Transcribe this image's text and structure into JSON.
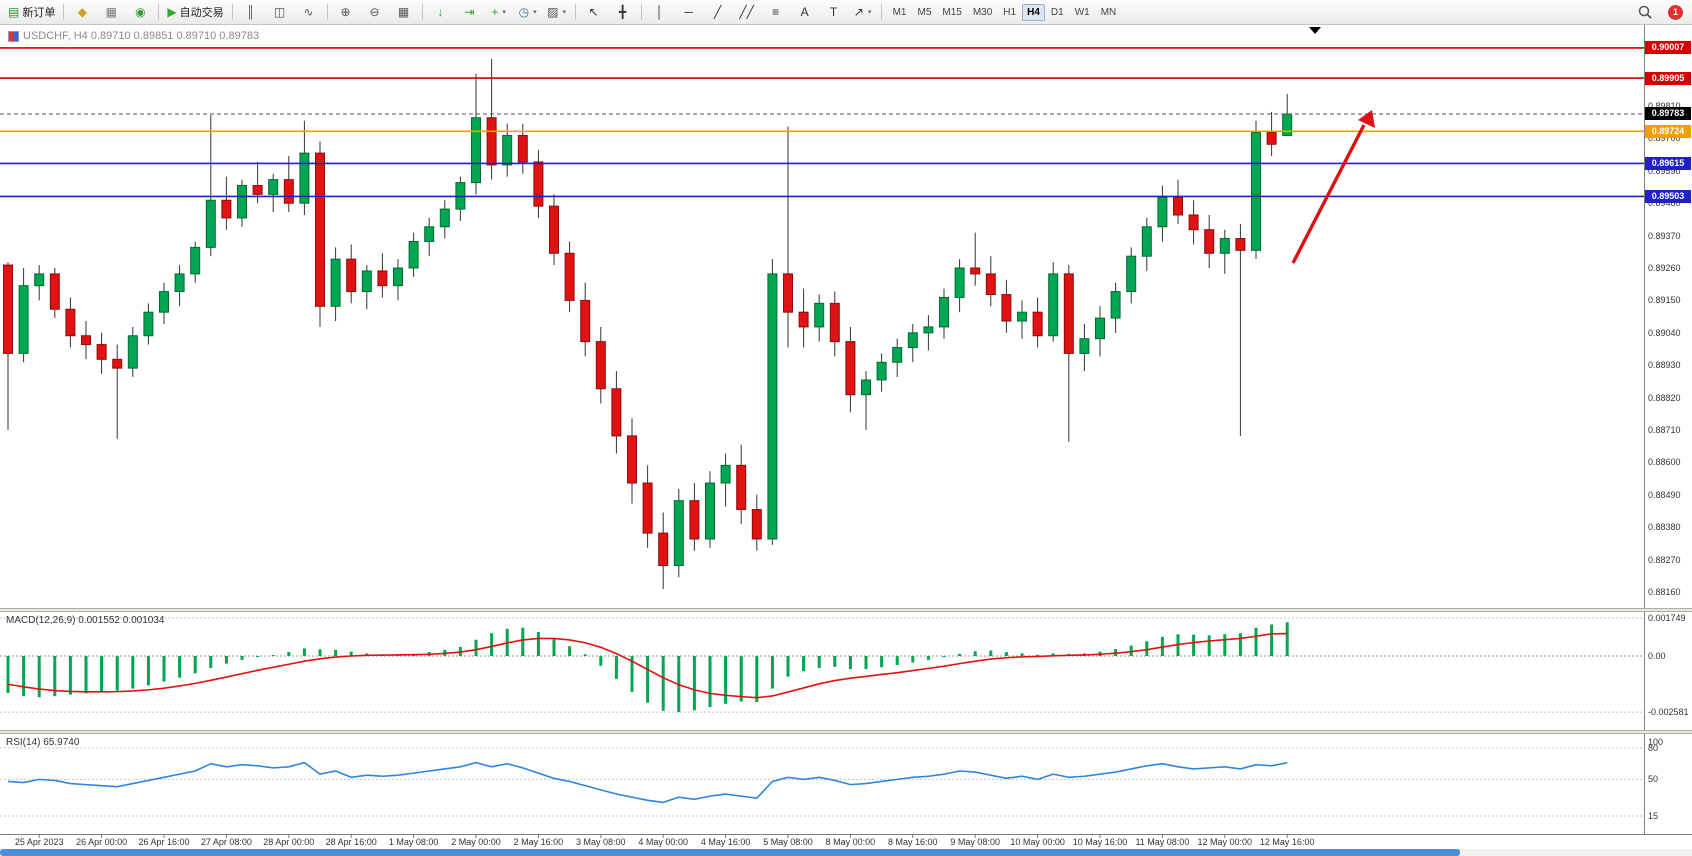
{
  "toolbar": {
    "items": [
      {
        "name": "new-order-button",
        "glyph": "▤",
        "color": "#2f8f2f",
        "label": "新订单"
      },
      {
        "sep": true
      },
      {
        "name": "wizard-icon",
        "glyph": "◆",
        "color": "#c9a227"
      },
      {
        "name": "profile-icon",
        "glyph": "▦",
        "color": "#7a7a7a"
      },
      {
        "name": "community-icon",
        "glyph": "◉",
        "color": "#3a9d3a"
      },
      {
        "sep": true
      },
      {
        "name": "autotrading-button",
        "glyph": "▶",
        "color": "#2faa2f",
        "label": "自动交易"
      },
      {
        "sep": true
      },
      {
        "name": "bar-chart-icon",
        "glyph": "║",
        "color": "#555555"
      },
      {
        "name": "candlestick-chart-icon",
        "glyph": "◫",
        "color": "#555555"
      },
      {
        "name": "line-chart-icon",
        "glyph": "∿",
        "color": "#555555"
      },
      {
        "sep": true
      },
      {
        "name": "zoom-in-icon",
        "glyph": "⊕",
        "color": "#555555"
      },
      {
        "name": "zoom-out-icon",
        "glyph": "⊖",
        "color": "#555555"
      },
      {
        "name": "tile-windows-icon",
        "glyph": "▦",
        "color": "#555555"
      },
      {
        "sep": true
      },
      {
        "name": "auto-scroll-icon",
        "glyph": "↓",
        "color": "#2faa2f"
      },
      {
        "name": "chart-shift-icon",
        "glyph": "⇥",
        "color": "#2faa2f"
      },
      {
        "name": "indicators-icon",
        "glyph": "+",
        "color": "#2faa2f",
        "dropdown": true
      },
      {
        "name": "periods-icon",
        "glyph": "◷",
        "color": "#3a6ea5",
        "dropdown": true
      },
      {
        "name": "templates-icon",
        "glyph": "▨",
        "color": "#555555",
        "dropdown": true
      },
      {
        "sep": true
      },
      {
        "name": "cursor-icon",
        "glyph": "↖",
        "color": "#333333"
      },
      {
        "name": "crosshair-icon",
        "glyph": "╋",
        "color": "#333333"
      },
      {
        "sep": true
      },
      {
        "name": "vertical-line-icon",
        "glyph": "│",
        "color": "#333333"
      },
      {
        "name": "horizontal-line-icon",
        "glyph": "─",
        "color": "#333333"
      },
      {
        "name": "trendline-icon",
        "glyph": "╱",
        "color": "#333333"
      },
      {
        "name": "channel-icon",
        "glyph": "╱╱",
        "color": "#333333"
      },
      {
        "name": "fibonacci-icon",
        "glyph": "≡",
        "color": "#333333"
      },
      {
        "name": "text-icon",
        "glyph": "A",
        "color": "#333333"
      },
      {
        "name": "label-icon",
        "glyph": "T",
        "color": "#333333"
      },
      {
        "name": "arrows-icon",
        "glyph": "↗",
        "color": "#333333",
        "dropdown": true
      },
      {
        "sep": true
      }
    ],
    "timeframes": [
      "M1",
      "M5",
      "M15",
      "M30",
      "H1",
      "H4",
      "D1",
      "W1",
      "MN"
    ],
    "active_timeframe": "H4",
    "notification_count": "1"
  },
  "chart_data": {
    "type": "candlestick",
    "symbol": "USDCHF",
    "timeframe": "H4",
    "title": "USDCHF, H4  0.89710 0.89851 0.89710 0.89783",
    "colors": {
      "up": "#00a651",
      "up_stroke": "#006b33",
      "down": "#e01212",
      "down_stroke": "#8e0b0b",
      "wick": "#333333",
      "macd_hist": "#00a651",
      "macd_signal": "#e01212",
      "rsi_line": "#2e86de",
      "arrow": "#dd1111"
    },
    "price_axis": {
      "labels": [
        "0.89810",
        "0.89700",
        "0.89590",
        "0.89480",
        "0.89370",
        "0.89260",
        "0.89150",
        "0.89040",
        "0.88930",
        "0.88820",
        "0.88710",
        "0.88600",
        "0.88490",
        "0.88380",
        "0.88270",
        "0.88160"
      ]
    },
    "time_labels": [
      "25 Apr 2023",
      "26 Apr 00:00",
      "26 Apr 16:00",
      "27 Apr 08:00",
      "28 Apr 00:00",
      "28 Apr 16:00",
      "1 May 08:00",
      "2 May 00:00",
      "2 May 16:00",
      "3 May 08:00",
      "4 May 00:00",
      "4 May 16:00",
      "5 May 08:00",
      "8 May 00:00",
      "8 May 16:00",
      "9 May 08:00",
      "10 May 00:00",
      "10 May 16:00",
      "11 May 08:00",
      "12 May 00:00",
      "12 May 16:00"
    ],
    "label_start_index": 2,
    "label_every": 4,
    "hlines": [
      {
        "price": 0.90007,
        "label": "0.90007",
        "color": "#d40000"
      },
      {
        "price": 0.89905,
        "label": "0.89905",
        "color": "#d40000"
      },
      {
        "price": 0.89724,
        "label": "0.89724",
        "color": "#f0a000"
      },
      {
        "price": 0.89615,
        "label": "0.89615",
        "color": "#2020c8"
      },
      {
        "price": 0.89503,
        "label": "0.89503",
        "color": "#2020c8"
      }
    ],
    "current_price": {
      "value": 0.89783,
      "label": "0.89783",
      "color": "#000000"
    },
    "candles": [
      [
        0.8927,
        0.8928,
        0.8871,
        0.8897
      ],
      [
        0.8897,
        0.8926,
        0.8894,
        0.892
      ],
      [
        0.892,
        0.8927,
        0.8915,
        0.8924
      ],
      [
        0.8924,
        0.8926,
        0.8909,
        0.8912
      ],
      [
        0.8912,
        0.8916,
        0.8899,
        0.8903
      ],
      [
        0.8903,
        0.8908,
        0.8895,
        0.89
      ],
      [
        0.89,
        0.8904,
        0.889,
        0.8895
      ],
      [
        0.8895,
        0.89,
        0.8868,
        0.8892
      ],
      [
        0.8892,
        0.8906,
        0.8889,
        0.8903
      ],
      [
        0.8903,
        0.8914,
        0.89,
        0.8911
      ],
      [
        0.8911,
        0.8921,
        0.8907,
        0.8918
      ],
      [
        0.8918,
        0.8927,
        0.8913,
        0.8924
      ],
      [
        0.8924,
        0.8935,
        0.8921,
        0.8933
      ],
      [
        0.8933,
        0.8978,
        0.893,
        0.8949
      ],
      [
        0.8949,
        0.8957,
        0.8939,
        0.8943
      ],
      [
        0.8943,
        0.8956,
        0.894,
        0.8954
      ],
      [
        0.8954,
        0.8962,
        0.8948,
        0.8951
      ],
      [
        0.8951,
        0.8958,
        0.8945,
        0.8956
      ],
      [
        0.8956,
        0.8964,
        0.8945,
        0.8948
      ],
      [
        0.8948,
        0.8976,
        0.8944,
        0.8965
      ],
      [
        0.8965,
        0.8969,
        0.8906,
        0.8913
      ],
      [
        0.8913,
        0.8933,
        0.8908,
        0.8929
      ],
      [
        0.8929,
        0.8934,
        0.8914,
        0.8918
      ],
      [
        0.8918,
        0.8927,
        0.8912,
        0.8925
      ],
      [
        0.8925,
        0.8931,
        0.8916,
        0.892
      ],
      [
        0.892,
        0.8929,
        0.8915,
        0.8926
      ],
      [
        0.8926,
        0.8938,
        0.8923,
        0.8935
      ],
      [
        0.8935,
        0.8943,
        0.893,
        0.894
      ],
      [
        0.894,
        0.8949,
        0.8936,
        0.8946
      ],
      [
        0.8946,
        0.8957,
        0.8942,
        0.8955
      ],
      [
        0.8955,
        0.8992,
        0.8951,
        0.8977
      ],
      [
        0.8977,
        0.8997,
        0.8956,
        0.8961
      ],
      [
        0.8961,
        0.8975,
        0.8957,
        0.8971
      ],
      [
        0.8971,
        0.8975,
        0.8958,
        0.8962
      ],
      [
        0.8962,
        0.8966,
        0.8943,
        0.8947
      ],
      [
        0.8947,
        0.8951,
        0.8927,
        0.8931
      ],
      [
        0.8931,
        0.8935,
        0.8911,
        0.8915
      ],
      [
        0.8915,
        0.8921,
        0.8896,
        0.8901
      ],
      [
        0.8901,
        0.8906,
        0.888,
        0.8885
      ],
      [
        0.8885,
        0.8891,
        0.8863,
        0.8869
      ],
      [
        0.8869,
        0.8875,
        0.8846,
        0.8853
      ],
      [
        0.8853,
        0.8859,
        0.8831,
        0.8836
      ],
      [
        0.8836,
        0.8843,
        0.8817,
        0.8825
      ],
      [
        0.8825,
        0.8851,
        0.8821,
        0.8847
      ],
      [
        0.8847,
        0.8853,
        0.883,
        0.8834
      ],
      [
        0.8834,
        0.8857,
        0.8831,
        0.8853
      ],
      [
        0.8853,
        0.8863,
        0.8845,
        0.8859
      ],
      [
        0.8859,
        0.8866,
        0.8839,
        0.8844
      ],
      [
        0.8844,
        0.8849,
        0.883,
        0.8834
      ],
      [
        0.8834,
        0.8929,
        0.8832,
        0.8924
      ],
      [
        0.8924,
        0.8974,
        0.8899,
        0.8911
      ],
      [
        0.8911,
        0.8919,
        0.8899,
        0.8906
      ],
      [
        0.8906,
        0.8917,
        0.8901,
        0.8914
      ],
      [
        0.8914,
        0.8918,
        0.8896,
        0.8901
      ],
      [
        0.8901,
        0.8906,
        0.8877,
        0.8883
      ],
      [
        0.8883,
        0.8891,
        0.8871,
        0.8888
      ],
      [
        0.8888,
        0.8897,
        0.8884,
        0.8894
      ],
      [
        0.8894,
        0.8902,
        0.8889,
        0.8899
      ],
      [
        0.8899,
        0.8907,
        0.8894,
        0.8904
      ],
      [
        0.8904,
        0.891,
        0.8898,
        0.8906
      ],
      [
        0.8906,
        0.8919,
        0.8902,
        0.8916
      ],
      [
        0.8916,
        0.8929,
        0.8911,
        0.8926
      ],
      [
        0.8926,
        0.8938,
        0.892,
        0.8924
      ],
      [
        0.8924,
        0.893,
        0.8913,
        0.8917
      ],
      [
        0.8917,
        0.8922,
        0.8904,
        0.8908
      ],
      [
        0.8908,
        0.8915,
        0.8902,
        0.8911
      ],
      [
        0.8911,
        0.8916,
        0.8899,
        0.8903
      ],
      [
        0.8903,
        0.8928,
        0.8901,
        0.8924
      ],
      [
        0.8924,
        0.8927,
        0.8867,
        0.8897
      ],
      [
        0.8897,
        0.8907,
        0.8891,
        0.8902
      ],
      [
        0.8902,
        0.8913,
        0.8896,
        0.8909
      ],
      [
        0.8909,
        0.8921,
        0.8904,
        0.8918
      ],
      [
        0.8918,
        0.8933,
        0.8914,
        0.893
      ],
      [
        0.893,
        0.8943,
        0.8925,
        0.894
      ],
      [
        0.894,
        0.8954,
        0.8935,
        0.895
      ],
      [
        0.895,
        0.8956,
        0.8941,
        0.8944
      ],
      [
        0.8944,
        0.8949,
        0.8934,
        0.8939
      ],
      [
        0.8939,
        0.8944,
        0.8926,
        0.8931
      ],
      [
        0.8931,
        0.8939,
        0.8924,
        0.8936
      ],
      [
        0.8936,
        0.8941,
        0.8869,
        0.8932
      ],
      [
        0.8932,
        0.8976,
        0.8929,
        0.8972
      ],
      [
        0.8972,
        0.8979,
        0.8964,
        0.8968
      ],
      [
        0.8971,
        0.89851,
        0.8971,
        0.89783
      ]
    ],
    "macd": {
      "label": "MACD(12,26,9) 0.001552 0.001034",
      "scale_labels": [
        "0.001749",
        "0.00",
        "-0.002581"
      ],
      "scale_values": [
        0.001749,
        0,
        -0.002581
      ],
      "histogram": [
        -0.0017,
        -0.00185,
        -0.0019,
        -0.00185,
        -0.00178,
        -0.00172,
        -0.00165,
        -0.0016,
        -0.0015,
        -0.00135,
        -0.00118,
        -0.001,
        -0.0008,
        -0.00055,
        -0.00035,
        -0.00018,
        -5e-05,
        5e-05,
        0.00018,
        0.00035,
        0.0003,
        0.00028,
        0.0002,
        0.00012,
        8e-05,
        6e-05,
        0.0001,
        0.00018,
        0.00028,
        0.00042,
        0.00075,
        0.00105,
        0.00125,
        0.0013,
        0.0011,
        0.0008,
        0.00045,
        8e-05,
        -0.00045,
        -0.00105,
        -0.00165,
        -0.00215,
        -0.00252,
        -0.00258,
        -0.0025,
        -0.00235,
        -0.0022,
        -0.0021,
        -0.00212,
        -0.0015,
        -0.00095,
        -0.0007,
        -0.00055,
        -0.0005,
        -0.0006,
        -0.0006,
        -0.00052,
        -0.00042,
        -0.0003,
        -0.00018,
        -5e-05,
        0.0001,
        0.00022,
        0.00025,
        0.00018,
        0.00012,
        5e-05,
        0.00012,
        0.0001,
        0.00012,
        0.0002,
        0.00032,
        0.00048,
        0.00068,
        0.00088,
        0.001,
        0.00098,
        0.00095,
        0.001,
        0.00105,
        0.0013,
        0.00145,
        0.001552
      ],
      "signal": [
        -0.0013,
        -0.00142,
        -0.00152,
        -0.00159,
        -0.00163,
        -0.00165,
        -0.00165,
        -0.00164,
        -0.00161,
        -0.00156,
        -0.00148,
        -0.00138,
        -0.00126,
        -0.00112,
        -0.00097,
        -0.00081,
        -0.00066,
        -0.00052,
        -0.00038,
        -0.00024,
        -0.00013,
        -5e-05,
        0.0,
        3e-05,
        4e-05,
        5e-05,
        6e-05,
        8e-05,
        0.00012,
        0.00018,
        0.00029,
        0.00044,
        0.0006,
        0.00074,
        0.00081,
        0.00081,
        0.00074,
        0.00061,
        0.0004,
        0.00011,
        -0.00024,
        -0.00062,
        -0.001,
        -0.00132,
        -0.00156,
        -0.00172,
        -0.00181,
        -0.00187,
        -0.00192,
        -0.00184,
        -0.00166,
        -0.00147,
        -0.00128,
        -0.00113,
        -0.00102,
        -0.00094,
        -0.00085,
        -0.00077,
        -0.00067,
        -0.00057,
        -0.00047,
        -0.00035,
        -0.00024,
        -0.00014,
        -8e-05,
        -4e-05,
        -2e-05,
        1e-05,
        3e-05,
        5e-05,
        8e-05,
        0.00013,
        0.0002,
        0.00029,
        0.00041,
        0.00053,
        0.00062,
        0.00069,
        0.00075,
        0.00081,
        0.00091,
        0.00102,
        0.001034
      ]
    },
    "rsi": {
      "label": "RSI(14) 65.9740",
      "scale_labels": [
        "100",
        "80",
        "50",
        "15"
      ],
      "scale_values": [
        100,
        80,
        50,
        15
      ],
      "levels": [
        80,
        50,
        15
      ],
      "values": [
        48,
        47,
        50,
        49,
        46,
        45,
        44,
        43,
        46,
        49,
        52,
        55,
        58,
        65,
        62,
        64,
        63,
        61,
        62,
        66,
        55,
        58,
        52,
        54,
        53,
        54,
        56,
        58,
        60,
        62,
        66,
        62,
        65,
        61,
        56,
        51,
        48,
        44,
        40,
        36,
        33,
        30,
        28,
        33,
        31,
        34,
        36,
        34,
        32,
        48,
        52,
        50,
        52,
        49,
        45,
        46,
        48,
        50,
        52,
        53,
        55,
        58,
        57,
        54,
        51,
        53,
        50,
        55,
        52,
        53,
        55,
        57,
        60,
        63,
        65,
        62,
        60,
        61,
        62,
        60,
        64,
        63,
        65.974
      ]
    },
    "annotations": [
      {
        "type": "arrow-up",
        "color": "#dd1111"
      }
    ]
  }
}
